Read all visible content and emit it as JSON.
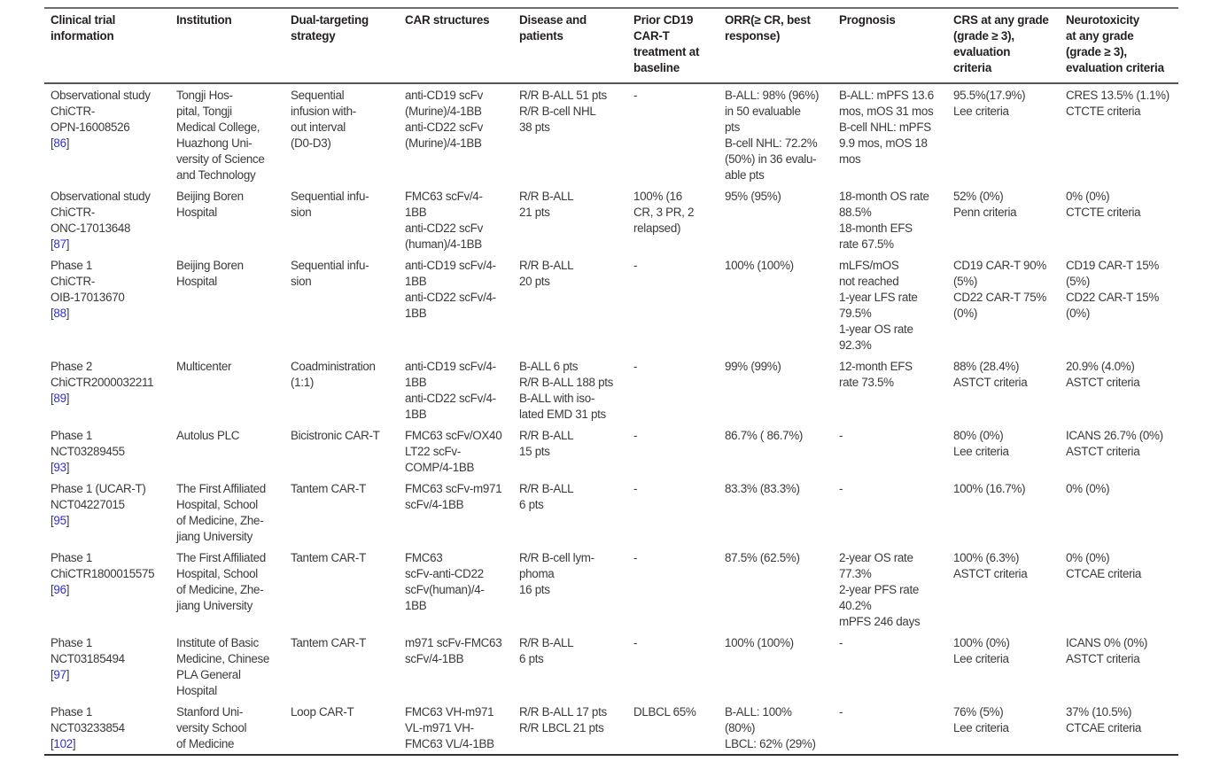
{
  "headers": [
    [
      "Clinical trial",
      "information"
    ],
    [
      "Institution"
    ],
    [
      "Dual-targeting",
      "strategy"
    ],
    [
      "CAR structures"
    ],
    [
      "Disease and",
      "patients"
    ],
    [
      "Prior CD19",
      "CAR-T",
      "treatment at",
      "baseline"
    ],
    [
      "ORR(≥ CR, best",
      "response)"
    ],
    [
      "Prognosis"
    ],
    [
      "CRS at any grade",
      "(grade ≥ 3),",
      "evaluation",
      "criteria"
    ],
    [
      "Neurotoxicity",
      "at any grade",
      "(grade ≥ 3),",
      "evaluation criteria"
    ]
  ],
  "rows": [
    {
      "trial": [
        "Observational study",
        "ChiCTR-",
        "OPN-16008526"
      ],
      "ref": "86",
      "institution": [
        "Tongji Hos-",
        "pital, Tongji",
        "Medical College,",
        "Huazhong Uni-",
        "versity of Science",
        "and Technology"
      ],
      "strategy": [
        "Sequential",
        "infusion with-",
        "out interval",
        "(D0-D3)"
      ],
      "car": [
        "anti-CD19 scFv",
        "(Murine)/4-1BB",
        "anti-CD22 scFv",
        "(Murine)/4-1BB"
      ],
      "disease": [
        "R/R B-ALL 51 pts",
        "R/R B-cell NHL",
        "38 pts"
      ],
      "prior": [
        "-"
      ],
      "orr": [
        "B-ALL: 98% (96%)",
        "in 50 evaluable",
        "pts",
        "B-cell NHL: 72.2%",
        "(50%) in 36 evalu-",
        "able pts"
      ],
      "prognosis": [
        "B-ALL: mPFS 13.6",
        "mos, mOS 31 mos",
        "B-cell NHL: mPFS",
        "9.9 mos, mOS 18",
        "mos"
      ],
      "crs": [
        "95.5%(17.9%)",
        "Lee criteria"
      ],
      "neuro": [
        "CRES 13.5% (1.1%)",
        "CTCTE criteria"
      ]
    },
    {
      "trial": [
        "Observational study",
        "ChiCTR-",
        "ONC-17013648"
      ],
      "ref": "87",
      "institution": [
        "Beijing Boren",
        "Hospital"
      ],
      "strategy": [
        "Sequential infu-",
        "sion"
      ],
      "car": [
        "FMC63 scFv/4-",
        "1BB",
        "anti-CD22 scFv",
        "(human)/4-1BB"
      ],
      "disease": [
        "R/R B-ALL",
        "21 pts"
      ],
      "prior": [
        "100% (16",
        "CR, 3 PR, 2",
        "relapsed)"
      ],
      "orr": [
        "95% (95%)"
      ],
      "prognosis": [
        "18-month OS rate",
        "88.5%",
        "18-month EFS",
        "rate 67.5%"
      ],
      "crs": [
        "52% (0%)",
        "Penn criteria"
      ],
      "neuro": [
        "0% (0%)",
        "CTCTE criteria"
      ]
    },
    {
      "trial": [
        "Phase 1",
        "ChiCTR-",
        "OIB-17013670"
      ],
      "ref": "88",
      "institution": [
        "Beijing Boren",
        "Hospital"
      ],
      "strategy": [
        "Sequential infu-",
        "sion"
      ],
      "car": [
        "anti-CD19 scFv/4-",
        "1BB",
        "anti-CD22 scFv/4-",
        "1BB"
      ],
      "disease": [
        "R/R B-ALL",
        "20 pts"
      ],
      "prior": [
        "-"
      ],
      "orr": [
        "100% (100%)"
      ],
      "prognosis": [
        "mLFS/mOS",
        "not reached",
        "1-year LFS rate",
        "79.5%",
        "1-year OS rate",
        "92.3%"
      ],
      "crs": [
        "CD19 CAR-T 90%",
        "(5%)",
        "CD22 CAR-T 75%",
        "(0%)"
      ],
      "neuro": [
        "CD19 CAR-T 15%",
        "(5%)",
        "CD22 CAR-T 15%",
        "(0%)"
      ]
    },
    {
      "trial": [
        "Phase 2",
        "ChiCTR2000032211"
      ],
      "ref": "89",
      "institution": [
        "Multicenter"
      ],
      "strategy": [
        "Coadministration",
        "(1:1)"
      ],
      "car": [
        "anti-CD19 scFv/4-",
        "1BB",
        "anti-CD22 scFv/4-",
        "1BB"
      ],
      "disease": [
        "B-ALL 6 pts",
        "R/R B-ALL 188 pts",
        "B-ALL with iso-",
        "lated EMD 31 pts"
      ],
      "prior": [
        "-"
      ],
      "orr": [
        "99% (99%)"
      ],
      "prognosis": [
        "12-month EFS",
        "rate 73.5%"
      ],
      "crs": [
        "88% (28.4%)",
        "ASTCT criteria"
      ],
      "neuro": [
        "20.9% (4.0%)",
        "ASTCT criteria"
      ]
    },
    {
      "trial": [
        "Phase 1",
        "NCT03289455"
      ],
      "ref": "93",
      "institution": [
        "Autolus PLC"
      ],
      "strategy": [
        "Bicistronic CAR-T"
      ],
      "car": [
        "FMC63 scFv/OX40",
        "LT22 scFv-",
        "COMP/4-1BB"
      ],
      "disease": [
        "R/R B-ALL",
        "15 pts"
      ],
      "prior": [
        "-"
      ],
      "orr": [
        "86.7% ( 86.7%)"
      ],
      "prognosis": [
        "-"
      ],
      "crs": [
        "80% (0%)",
        "Lee criteria"
      ],
      "neuro": [
        "ICANS 26.7% (0%)",
        "ASTCT criteria"
      ]
    },
    {
      "trial": [
        "Phase 1 (UCAR-T)",
        "NCT04227015"
      ],
      "ref": "95",
      "institution": [
        "The First Affiliated",
        "Hospital, School",
        "of Medicine, Zhe-",
        "jiang University"
      ],
      "strategy": [
        "Tantem CAR-T"
      ],
      "car": [
        "FMC63 scFv-m971",
        "scFv/4-1BB"
      ],
      "disease": [
        "R/R B-ALL",
        "6 pts"
      ],
      "prior": [
        "-"
      ],
      "orr": [
        "83.3% (83.3%)"
      ],
      "prognosis": [
        "-"
      ],
      "crs": [
        "100% (16.7%)"
      ],
      "neuro": [
        "0% (0%)"
      ]
    },
    {
      "trial": [
        "Phase 1",
        "ChiCTR1800015575"
      ],
      "ref": "96",
      "institution": [
        "The First Affiliated",
        "Hospital, School",
        "of Medicine, Zhe-",
        "jiang University"
      ],
      "strategy": [
        "Tantem CAR-T"
      ],
      "car": [
        "FMC63",
        "scFv-anti-CD22",
        "scFv(human)/4-",
        "1BB"
      ],
      "disease": [
        "R/R B-cell lym-",
        "phoma",
        "16 pts"
      ],
      "prior": [
        "-"
      ],
      "orr": [
        "87.5% (62.5%)"
      ],
      "prognosis": [
        "2-year OS rate",
        "77.3%",
        "2-year PFS rate",
        "40.2%",
        "mPFS 246 days"
      ],
      "crs": [
        "100% (6.3%)",
        "ASTCT criteria"
      ],
      "neuro": [
        "0% (0%)",
        "CTCAE criteria"
      ]
    },
    {
      "trial": [
        "Phase 1",
        "NCT03185494"
      ],
      "ref": "97",
      "institution": [
        "Institute of Basic",
        "Medicine, Chinese",
        "PLA General",
        "Hospital"
      ],
      "strategy": [
        "Tantem CAR-T"
      ],
      "car": [
        "m971 scFv-FMC63",
        "scFv/4-1BB"
      ],
      "disease": [
        "R/R B-ALL",
        "6 pts"
      ],
      "prior": [
        "-"
      ],
      "orr": [
        "100% (100%)"
      ],
      "prognosis": [
        "-"
      ],
      "crs": [
        "100% (0%)",
        "Lee criteria"
      ],
      "neuro": [
        "ICANS 0% (0%)",
        "ASTCT criteria"
      ]
    },
    {
      "trial": [
        "Phase 1",
        "NCT03233854"
      ],
      "ref": "102",
      "institution": [
        "Stanford Uni-",
        "versity School",
        "of Medicine"
      ],
      "strategy": [
        "Loop CAR-T"
      ],
      "car": [
        "FMC63 VH-m971",
        "VL-m971 VH-",
        "FMC63 VL/4-1BB"
      ],
      "disease": [
        "R/R B-ALL 17 pts",
        "R/R LBCL 21 pts"
      ],
      "prior": [
        "DLBCL 65%"
      ],
      "orr": [
        "B-ALL: 100%",
        "(80%)",
        "LBCL: 62% (29%)"
      ],
      "prognosis": [
        "-"
      ],
      "crs": [
        "76% (5%)",
        "Lee criteria"
      ],
      "neuro": [
        "37% (10.5%)",
        "CTCAE criteria"
      ]
    }
  ],
  "colors": {
    "reference_link": "#2f2fd0",
    "text": "#3a3a3a",
    "rule": "#555555"
  }
}
